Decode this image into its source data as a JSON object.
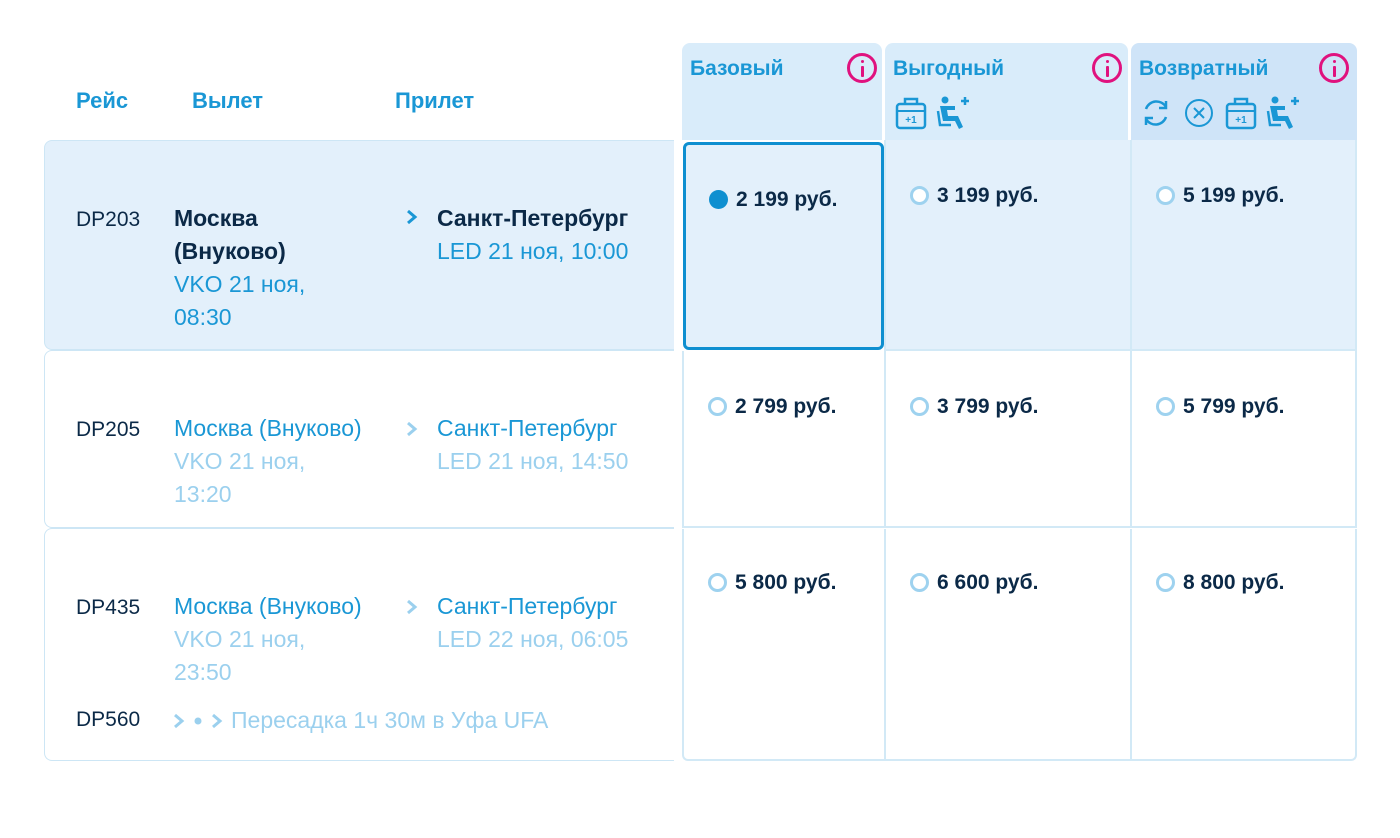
{
  "header": {
    "col_flight": "Рейс",
    "col_departure": "Вылет",
    "col_arrival": "Прилет"
  },
  "tariffs": [
    {
      "name": "Базовый",
      "features": []
    },
    {
      "name": "Выгодный",
      "features": [
        "baggage-plus-one-icon",
        "seat-selection-icon"
      ]
    },
    {
      "name": "Возвратный",
      "features": [
        "refund-icon",
        "cancel-circle-icon",
        "baggage-plus-one-icon",
        "seat-selection-icon"
      ]
    }
  ],
  "flights": [
    {
      "number": "DP203",
      "from_city": "Москва (Внуково)",
      "from_detail": "VKO 21 ноя, 08:30",
      "to_city": "Санкт-Петербург",
      "to_detail": "LED 21 ноя, 10:00",
      "prices": [
        "2 199 руб.",
        "3 199 руб.",
        "5 199 руб."
      ],
      "selected_tariff": 0
    },
    {
      "number": "DP205",
      "from_city": "Москва (Внуково)",
      "from_detail": "VKO 21 ноя, 13:20",
      "to_city": "Санкт-Петербург",
      "to_detail": "LED 21 ноя, 14:50",
      "prices": [
        "2 799 руб.",
        "3 799 руб.",
        "5 799 руб."
      ]
    },
    {
      "number": "DP435",
      "second_number": "DP560",
      "from_city": "Москва (Внуково)",
      "from_detail": "VKO 21 ноя, 23:50",
      "to_city": "Санкт-Петербург",
      "to_detail": "LED 22 ноя, 06:05",
      "transfer": "Пересадка 1ч 30м в Уфа UFA",
      "prices": [
        "5 800 руб.",
        "6 600 руб.",
        "8 800 руб."
      ]
    }
  ],
  "colors": {
    "accent": "#1a97d5",
    "selected": "#0e8fd0",
    "dark_text": "#0b2947",
    "muted_text": "#9bd0ee",
    "info": "#e0127e",
    "selected_row_bg": "#e3f0fb"
  }
}
